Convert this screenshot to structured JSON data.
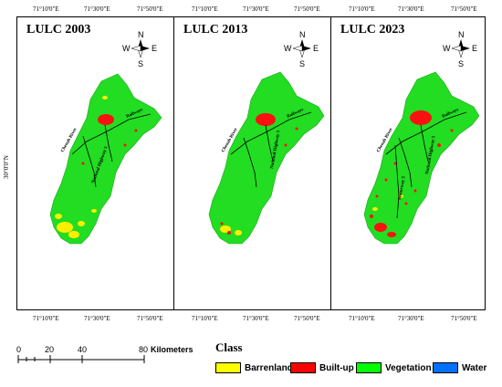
{
  "panels": [
    {
      "title": "LULC 2003"
    },
    {
      "title": "LULC 2013"
    },
    {
      "title": "LULC 2023"
    }
  ],
  "top_ticks": [
    "71°10'0\"E",
    "71°30'0\"E",
    "71°50'0\"E"
  ],
  "bottom_ticks": [
    "71°10'0\"E",
    "71°30'0\"E",
    "71°50'0\"E"
  ],
  "lat_label": "30°0'0\"N",
  "compass": {
    "n": "N",
    "s": "S",
    "e": "E",
    "w": "W"
  },
  "annotations": {
    "river": "Chenab River",
    "highway": "National Highway 5",
    "railway": "Railways",
    "motorway": "Motorway 5"
  },
  "scale": {
    "ticks": [
      "0",
      "20",
      "40",
      "80"
    ],
    "units": "Kilometers"
  },
  "legend": {
    "title": "Class",
    "items": [
      {
        "label": "Barrenland",
        "color": "#ffff00"
      },
      {
        "label": "Built-up",
        "color": "#ff0000"
      },
      {
        "label": "Vegetation",
        "color": "#00ff00"
      },
      {
        "label": "Water",
        "color": "#0070ff"
      }
    ]
  }
}
